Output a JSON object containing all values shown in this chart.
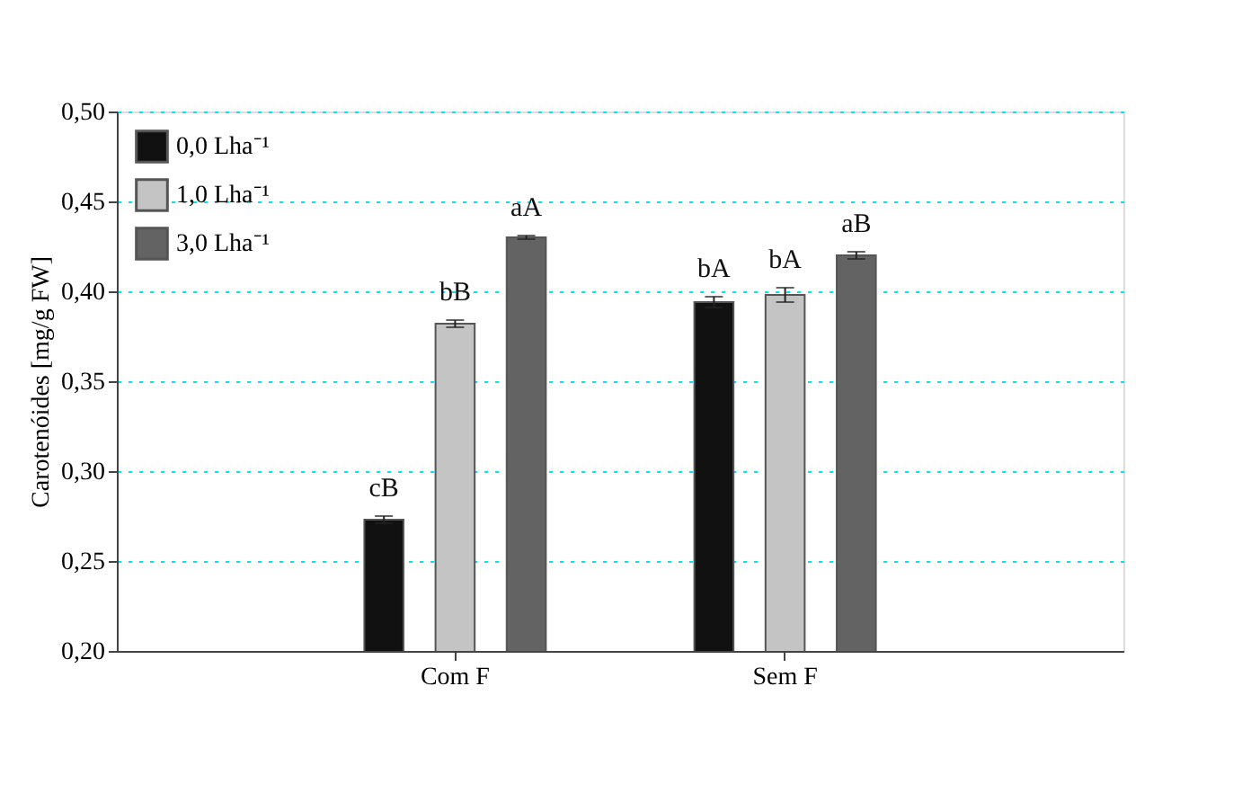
{
  "chart_data": {
    "type": "bar",
    "ylabel": "Carotenóides  [mg/g FW]",
    "categories": [
      "Com F",
      "Sem F"
    ],
    "series": [
      {
        "name": "0,0 Lha⁻¹",
        "color": "#111111",
        "values": [
          0.273,
          0.394
        ],
        "errors": [
          0.002,
          0.003
        ],
        "value_labels": [
          "cB",
          "bA"
        ]
      },
      {
        "name": "1,0 Lha⁻¹",
        "color": "#c4c4c4",
        "values": [
          0.382,
          0.398
        ],
        "errors": [
          0.002,
          0.004
        ],
        "value_labels": [
          "bB",
          "bA"
        ]
      },
      {
        "name": "3,0 Lha⁻¹",
        "color": "#636363",
        "values": [
          0.43,
          0.42
        ],
        "errors": [
          0.001,
          0.002
        ],
        "value_labels": [
          "aA",
          "aB"
        ]
      }
    ],
    "ylim": [
      0.2,
      0.5
    ],
    "yticks": [
      {
        "value": 0.2,
        "label": "0,20"
      },
      {
        "value": 0.25,
        "label": "0,25"
      },
      {
        "value": 0.3,
        "label": "0,30"
      },
      {
        "value": 0.35,
        "label": "0,35"
      },
      {
        "value": 0.4,
        "label": "0,40"
      },
      {
        "value": 0.45,
        "label": "0,45"
      },
      {
        "value": 0.5,
        "label": "0,50"
      }
    ],
    "grid": "y",
    "legend": "top left"
  }
}
